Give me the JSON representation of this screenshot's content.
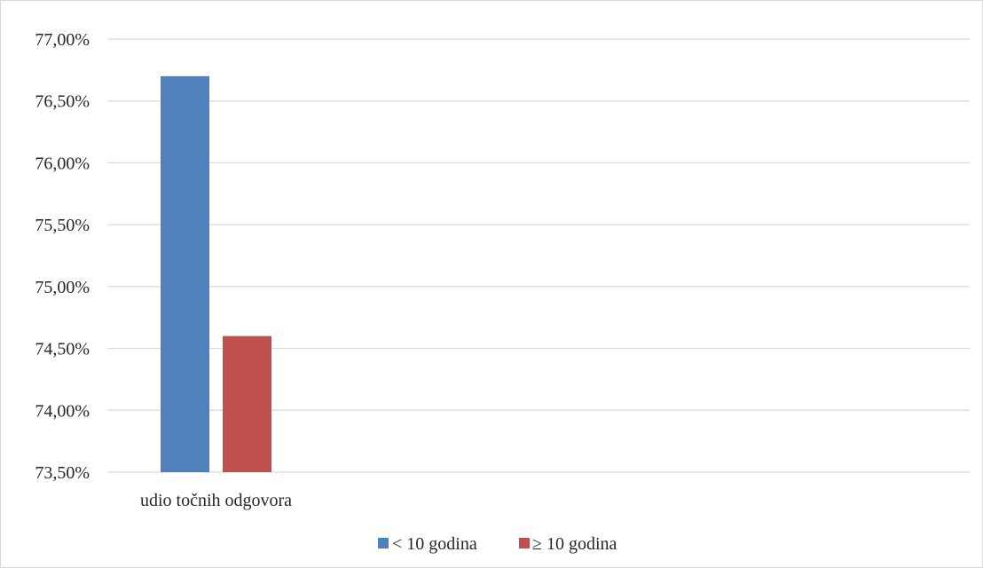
{
  "chart_data": {
    "type": "bar",
    "categories": [
      "udio točnih odgovora"
    ],
    "series": [
      {
        "name": "< 10 godina",
        "values": [
          76.7
        ],
        "color": "#4f81bd"
      },
      {
        "name": "≥ 10 godina",
        "values": [
          74.6
        ],
        "color": "#c0504d"
      }
    ],
    "ylim": [
      73.5,
      77.0
    ],
    "yticks": [
      "73,50%",
      "74,00%",
      "74,50%",
      "75,00%",
      "75,50%",
      "76,00%",
      "76,50%",
      "77,00%"
    ],
    "ytick_values": [
      73.5,
      74.0,
      74.5,
      75.0,
      75.5,
      76.0,
      76.5,
      77.0
    ],
    "grid": true,
    "legend_position": "bottom",
    "gridline_color": "#d9d9d9"
  }
}
